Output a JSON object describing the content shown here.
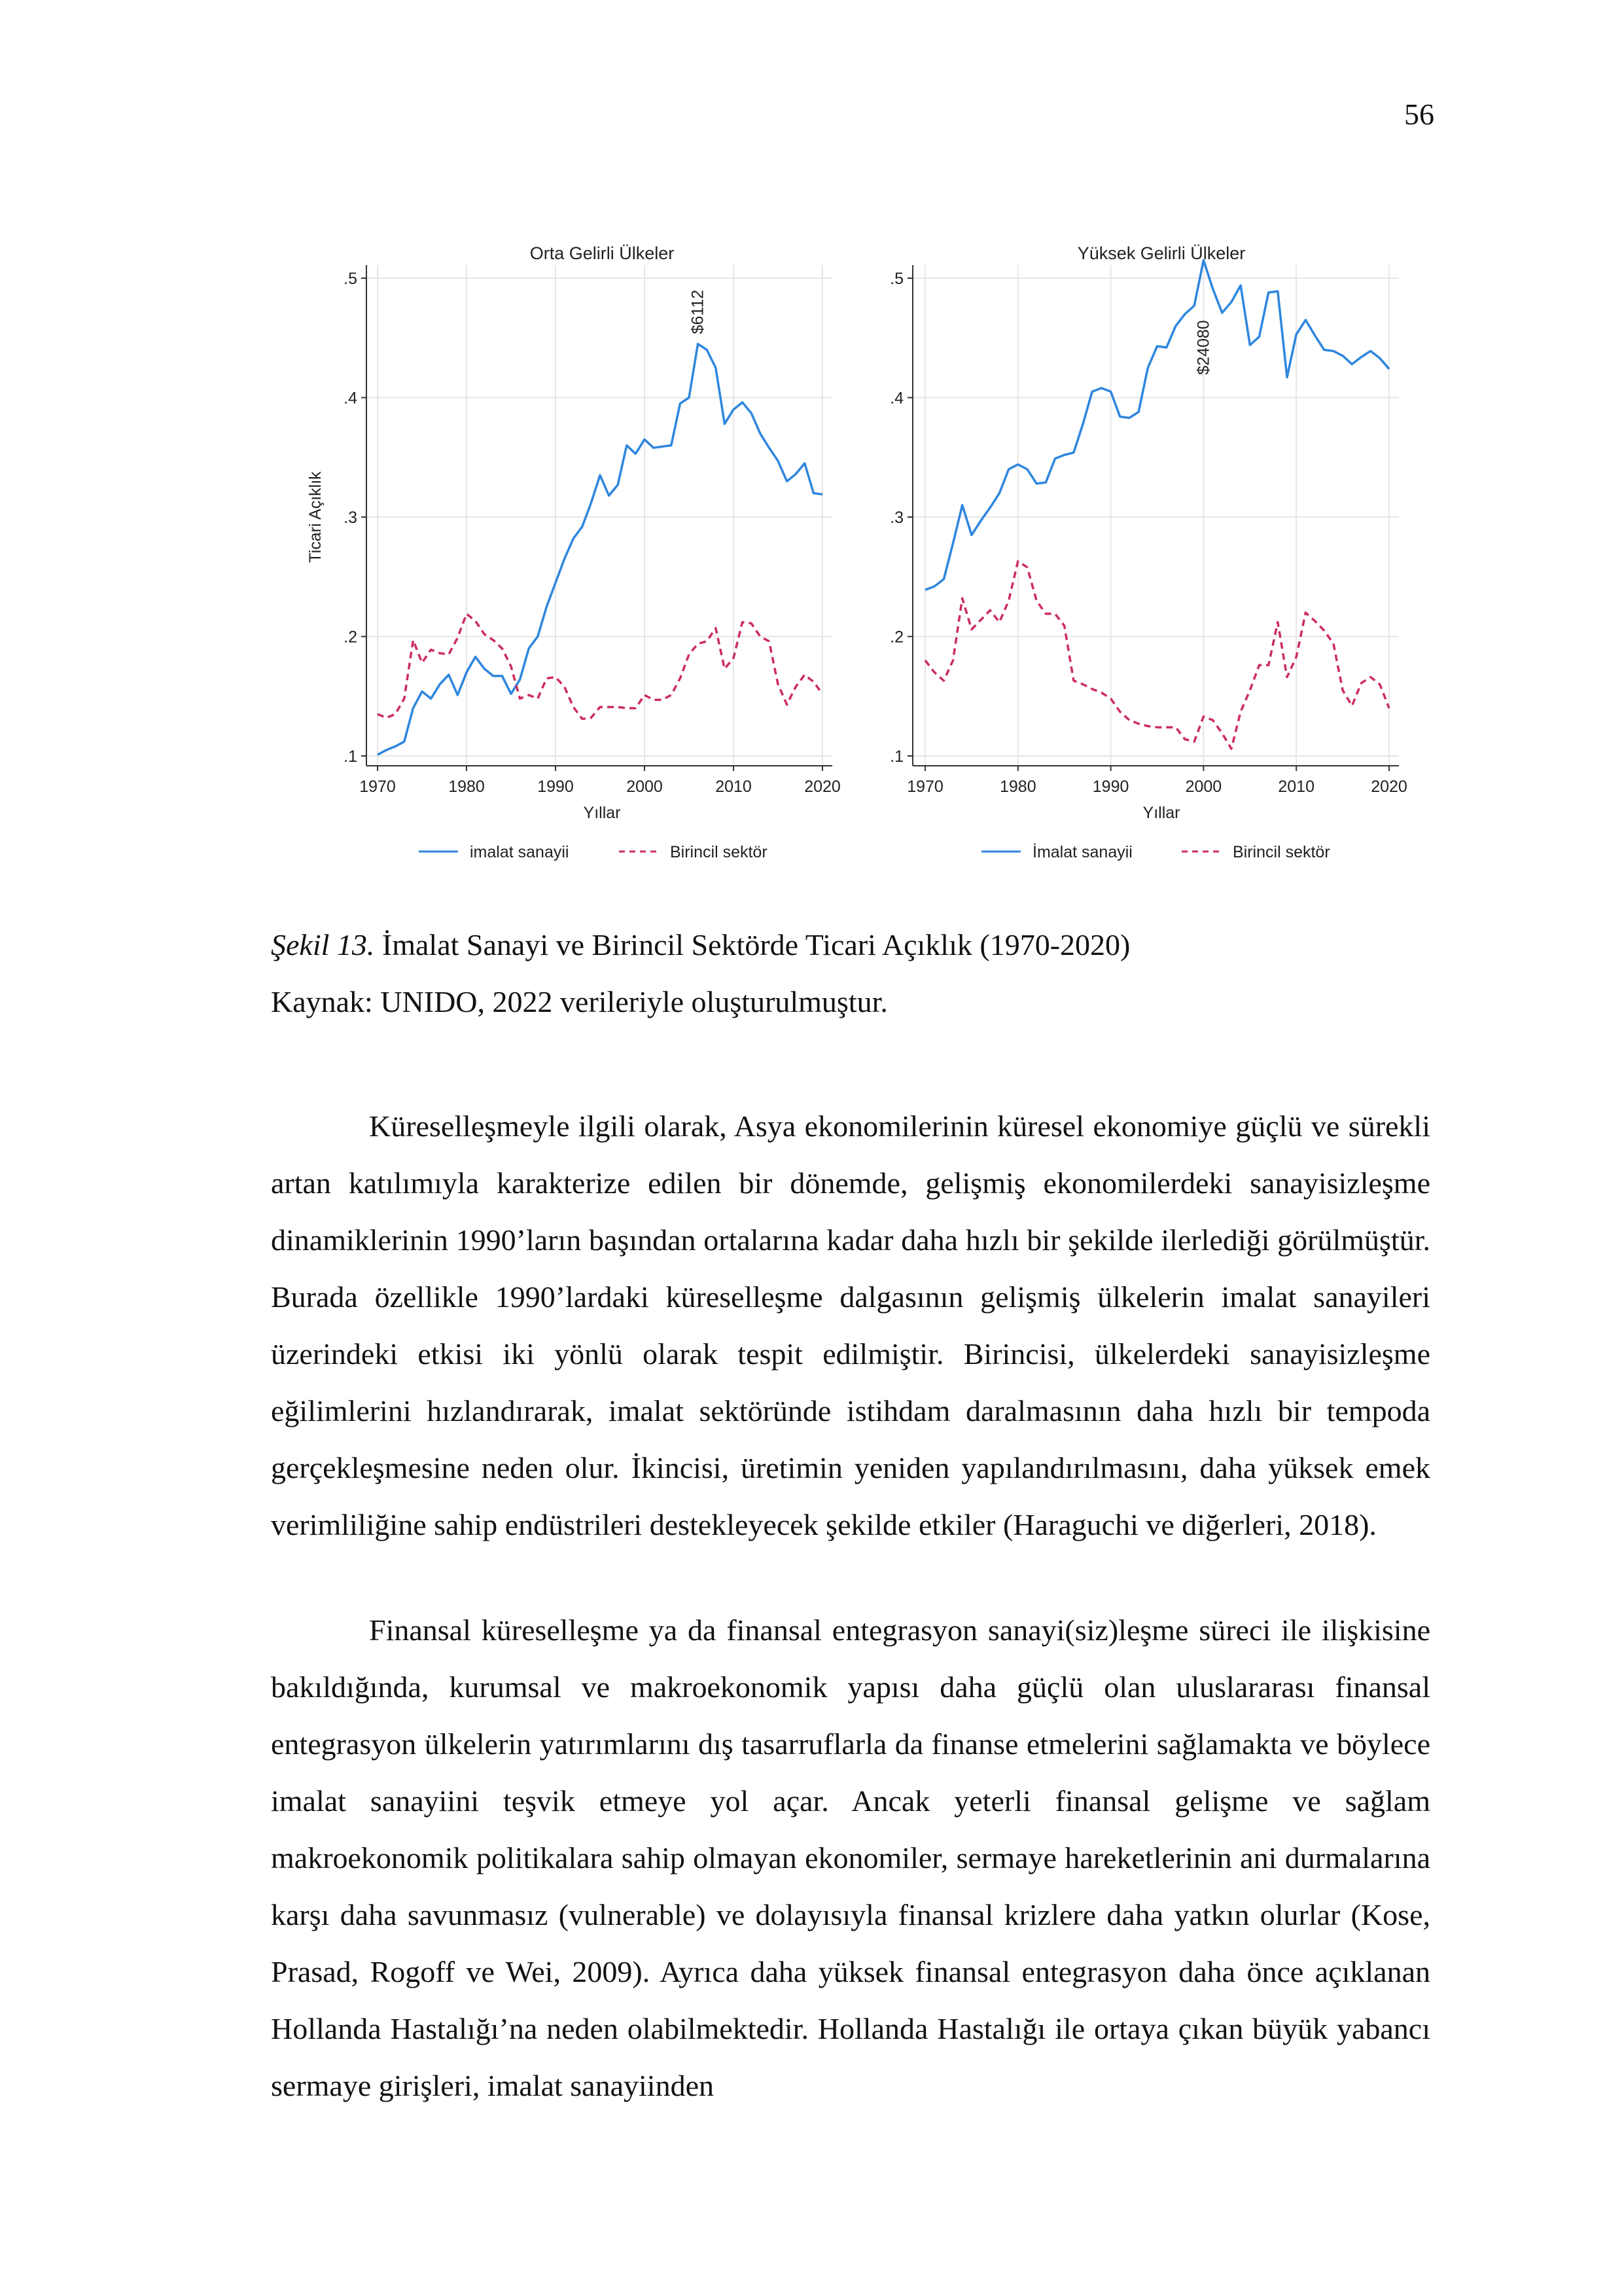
{
  "page_number": "56",
  "chart_data": [
    {
      "type": "line",
      "title": "Orta Gelirli Ülkeler",
      "xlabel": "Yıllar",
      "ylabel": "Ticari Açıklık",
      "xlim": [
        1970,
        2020
      ],
      "ylim": [
        0.1,
        0.5
      ],
      "xticks": [
        "1970",
        "1980",
        "1990",
        "2000",
        "2010",
        "2020"
      ],
      "yticks": [
        ".1",
        ".2",
        ".3",
        ".4",
        ".5"
      ],
      "annotation": {
        "text": "$6112",
        "x": 2006
      },
      "x": [
        1970,
        1971,
        1972,
        1973,
        1974,
        1975,
        1976,
        1977,
        1978,
        1979,
        1980,
        1981,
        1982,
        1983,
        1984,
        1985,
        1986,
        1987,
        1988,
        1989,
        1990,
        1991,
        1992,
        1993,
        1994,
        1995,
        1996,
        1997,
        1998,
        1999,
        2000,
        2001,
        2002,
        2003,
        2004,
        2005,
        2006,
        2007,
        2008,
        2009,
        2010,
        2011,
        2012,
        2013,
        2014,
        2015,
        2016,
        2017,
        2018,
        2019,
        2020
      ],
      "series": [
        {
          "name": "imalat sanayii",
          "color": "#2e86de",
          "dash": "solid",
          "values": [
            0.101,
            0.105,
            0.108,
            0.112,
            0.14,
            0.154,
            0.148,
            0.16,
            0.168,
            0.151,
            0.17,
            0.183,
            0.173,
            0.167,
            0.167,
            0.152,
            0.164,
            0.19,
            0.2,
            0.225,
            0.245,
            0.265,
            0.282,
            0.292,
            0.312,
            0.335,
            0.318,
            0.327,
            0.36,
            0.353,
            0.365,
            0.358,
            0.359,
            0.36,
            0.395,
            0.4,
            0.445,
            0.44,
            0.425,
            0.378,
            0.39,
            0.396,
            0.387,
            0.37,
            0.358,
            0.347,
            0.33,
            0.336,
            0.345,
            0.32,
            0.319
          ]
        },
        {
          "name": "Birincil sektör",
          "color": "#cc2d5f",
          "dash": "dashed",
          "values": [
            0.135,
            0.132,
            0.135,
            0.148,
            0.197,
            0.178,
            0.189,
            0.186,
            0.185,
            0.199,
            0.219,
            0.213,
            0.202,
            0.197,
            0.19,
            0.175,
            0.148,
            0.151,
            0.148,
            0.165,
            0.166,
            0.158,
            0.141,
            0.131,
            0.132,
            0.141,
            0.141,
            0.141,
            0.14,
            0.14,
            0.151,
            0.147,
            0.147,
            0.151,
            0.165,
            0.185,
            0.194,
            0.196,
            0.207,
            0.173,
            0.182,
            0.212,
            0.211,
            0.2,
            0.196,
            0.16,
            0.143,
            0.158,
            0.168,
            0.162,
            0.152
          ]
        }
      ],
      "legend": {
        "placement": "bottom",
        "items": [
          "imalat sanayii",
          "Birincil sektör"
        ]
      }
    },
    {
      "type": "line",
      "title": "Yüksek Gelirli Ülkeler",
      "xlabel": "Yıllar",
      "ylabel": "",
      "xlim": [
        1970,
        2020
      ],
      "ylim": [
        0.1,
        0.5
      ],
      "xticks": [
        "1970",
        "1980",
        "1990",
        "2000",
        "2010",
        "2020"
      ],
      "yticks": [
        ".1",
        ".2",
        ".3",
        ".4",
        ".5"
      ],
      "annotation": {
        "text": "$24080",
        "x": 2000
      },
      "x": [
        1970,
        1971,
        1972,
        1973,
        1974,
        1975,
        1976,
        1977,
        1978,
        1979,
        1980,
        1981,
        1982,
        1983,
        1984,
        1985,
        1986,
        1987,
        1988,
        1989,
        1990,
        1991,
        1992,
        1993,
        1994,
        1995,
        1996,
        1997,
        1998,
        1999,
        2000,
        2001,
        2002,
        2003,
        2004,
        2005,
        2006,
        2007,
        2008,
        2009,
        2010,
        2011,
        2012,
        2013,
        2014,
        2015,
        2016,
        2017,
        2018,
        2019,
        2020
      ],
      "series": [
        {
          "name": "İmalat sanayii",
          "color": "#2e86de",
          "dash": "solid",
          "values": [
            0.239,
            0.242,
            0.248,
            0.278,
            0.31,
            0.285,
            0.297,
            0.308,
            0.32,
            0.34,
            0.344,
            0.34,
            0.328,
            0.329,
            0.349,
            0.352,
            0.354,
            0.378,
            0.405,
            0.408,
            0.405,
            0.384,
            0.383,
            0.388,
            0.425,
            0.443,
            0.442,
            0.46,
            0.47,
            0.477,
            0.515,
            0.491,
            0.471,
            0.48,
            0.494,
            0.444,
            0.451,
            0.488,
            0.489,
            0.417,
            0.453,
            0.465,
            0.452,
            0.44,
            0.439,
            0.435,
            0.428,
            0.434,
            0.439,
            0.433,
            0.424
          ]
        },
        {
          "name": "Birincil sektör",
          "color": "#cc2d5f",
          "dash": "dashed",
          "values": [
            0.18,
            0.17,
            0.163,
            0.18,
            0.232,
            0.206,
            0.214,
            0.222,
            0.212,
            0.23,
            0.263,
            0.258,
            0.23,
            0.219,
            0.219,
            0.209,
            0.163,
            0.16,
            0.156,
            0.153,
            0.148,
            0.137,
            0.13,
            0.127,
            0.125,
            0.124,
            0.124,
            0.124,
            0.114,
            0.112,
            0.133,
            0.13,
            0.119,
            0.106,
            0.137,
            0.155,
            0.176,
            0.176,
            0.212,
            0.166,
            0.183,
            0.22,
            0.213,
            0.205,
            0.194,
            0.155,
            0.142,
            0.161,
            0.166,
            0.16,
            0.14
          ]
        }
      ],
      "legend": {
        "placement": "bottom",
        "items": [
          "İmalat sanayii",
          "Birincil sektör"
        ]
      }
    }
  ],
  "caption": {
    "figure_label": "Şekil 13.",
    "figure_title": " İmalat Sanayi ve Birincil Sektörde Ticari Açıklık (1970-2020)",
    "source": "Kaynak: UNIDO, 2022 verileriyle oluşturulmuştur."
  },
  "paragraphs": [
    "Küreselleşmeyle ilgili olarak, Asya ekonomilerinin küresel ekonomiye güçlü ve sürekli artan katılımıyla karakterize edilen bir dönemde, gelişmiş ekonomilerdeki sanayisizleşme dinamiklerinin 1990’ların başından ortalarına kadar daha hızlı bir şekilde ilerlediği görülmüştür. Burada özellikle 1990’lardaki küreselleşme dalgasının gelişmiş ülkelerin imalat sanayileri üzerindeki etkisi iki yönlü olarak tespit edilmiştir. Birincisi, ülkelerdeki sanayisizleşme eğilimlerini hızlandırarak, imalat sektöründe istihdam daralmasının daha hızlı bir tempoda gerçekleşmesine neden olur. İkincisi, üretimin yeniden yapılandırılmasını, daha yüksek emek verimliliğine sahip endüstrileri destekleyecek şekilde etkiler (Haraguchi ve diğerleri, 2018).",
    "Finansal küreselleşme ya da finansal entegrasyon sanayi(siz)leşme süreci ile ilişkisine bakıldığında, kurumsal ve makroekonomik yapısı daha güçlü olan uluslararası finansal entegrasyon ülkelerin yatırımlarını dış tasarruflarla da finanse etmelerini sağlamakta ve böylece imalat sanayiini teşvik etmeye yol açar. Ancak yeterli finansal gelişme ve sağlam makroekonomik politikalara sahip olmayan ekonomiler, sermaye hareketlerinin ani durmalarına karşı daha savunmasız (vulnerable) ve dolayısıyla finansal krizlere daha yatkın olurlar (Kose, Prasad, Rogoff ve Wei, 2009). Ayrıca daha yüksek finansal entegrasyon daha önce açıklanan Hollanda Hastalığı’na neden olabilmektedir. Hollanda Hastalığı ile ortaya çıkan büyük yabancı sermaye girişleri, imalat sanayiinden"
  ]
}
